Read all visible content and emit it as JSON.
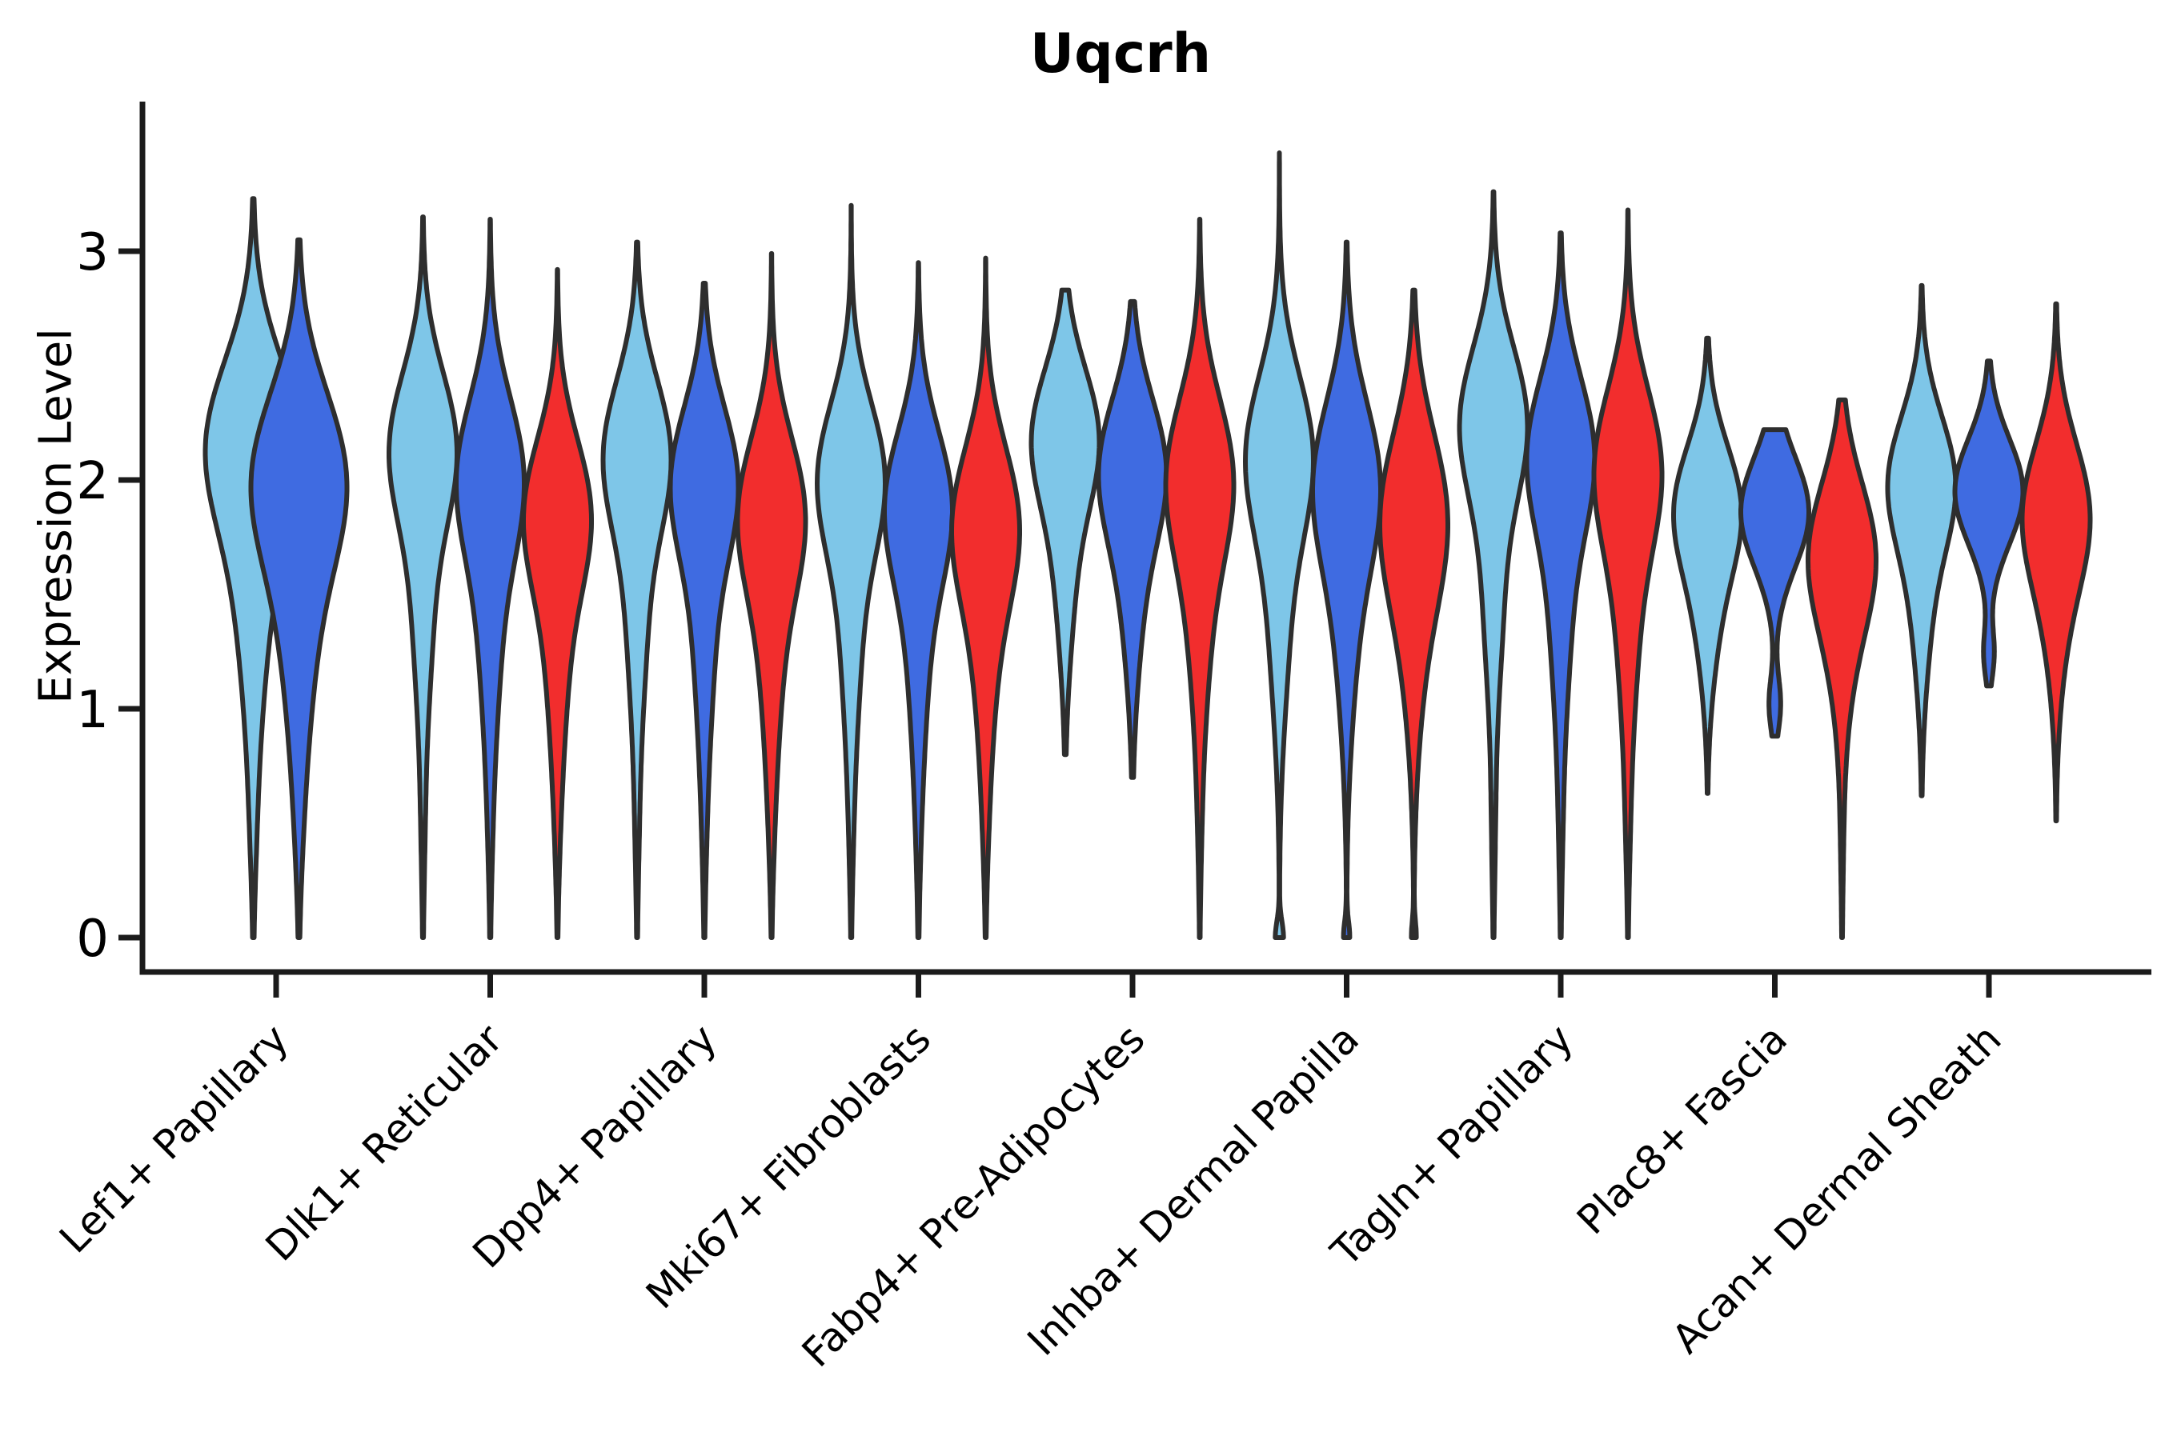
{
  "chart_data": {
    "type": "violin",
    "title": "Uqcrh",
    "ylabel": "Expression Level",
    "xlabel": "",
    "yticks": [
      0,
      1,
      2,
      3
    ],
    "ylim": [
      0,
      3.7
    ],
    "grid": false,
    "legend_position": "none",
    "palette": {
      "split_1": "#7EC6E8",
      "split_2": "#3F6BE1",
      "split_3": "#F22D2D",
      "outline": "#2E2E2E",
      "axis": "#1B1B1B"
    },
    "categories": [
      "Lef1+ Papillary",
      "Dlk1+ Reticular",
      "Dpp4+ Papillary",
      "Mki67+ Fibroblasts",
      "Fabp4+ Pre-Adipocytes",
      "Inhba+ Dermal Papilla",
      "Tagln+ Papillary",
      "Plac8+ Fascia",
      "Acan+ Dermal Sheath"
    ],
    "groups": [
      {
        "category": "Lef1+ Papillary",
        "violins": [
          {
            "split": 1,
            "color": "#7EC6E8",
            "max": 3.23,
            "min": 0,
            "peak": 2.17,
            "comps": [
              [
                1,
                2.17,
                0.37
              ],
              [
                0.33,
                1.45,
                0.48
              ],
              [
                0.05,
                0.5,
                0.32
              ]
            ]
          },
          {
            "split": 2,
            "color": "#3F6BE1",
            "max": 3.05,
            "min": 0,
            "peak": 2.02,
            "comps": [
              [
                1,
                2.02,
                0.38
              ],
              [
                0.33,
                1.3,
                0.46
              ],
              [
                0.05,
                0.5,
                0.32
              ]
            ]
          }
        ]
      },
      {
        "category": "Dlk1+ Reticular",
        "violins": [
          {
            "split": 1,
            "color": "#7EC6E8",
            "max": 3.15,
            "min": 0,
            "peak": 2.15,
            "comps": [
              [
                1,
                2.15,
                0.33
              ],
              [
                0.3,
                1.43,
                0.42
              ],
              [
                0.05,
                0.5,
                0.32
              ]
            ]
          },
          {
            "split": 2,
            "color": "#3F6BE1",
            "max": 3.14,
            "min": 0,
            "peak": 2.02,
            "comps": [
              [
                1,
                2.02,
                0.35
              ],
              [
                0.3,
                1.3,
                0.42
              ],
              [
                0.05,
                0.5,
                0.32
              ]
            ]
          },
          {
            "split": 3,
            "color": "#F22D2D",
            "max": 2.92,
            "min": 0,
            "peak": 1.86,
            "comps": [
              [
                1,
                1.86,
                0.33
              ],
              [
                0.3,
                1.2,
                0.4
              ],
              [
                0.05,
                0.5,
                0.3
              ]
            ]
          }
        ]
      },
      {
        "category": "Dpp4+ Papillary",
        "violins": [
          {
            "split": 1,
            "color": "#7EC6E8",
            "max": 3.04,
            "min": 0,
            "peak": 2.12,
            "comps": [
              [
                1,
                2.12,
                0.33
              ],
              [
                0.3,
                1.4,
                0.42
              ],
              [
                0.05,
                0.5,
                0.32
              ]
            ]
          },
          {
            "split": 2,
            "color": "#3F6BE1",
            "max": 2.86,
            "min": 0,
            "peak": 2.0,
            "comps": [
              [
                1,
                2.0,
                0.33
              ],
              [
                0.3,
                1.3,
                0.42
              ],
              [
                0.05,
                0.5,
                0.32
              ]
            ]
          },
          {
            "split": 3,
            "color": "#F22D2D",
            "max": 2.99,
            "min": 0,
            "peak": 1.86,
            "comps": [
              [
                1,
                1.86,
                0.34
              ],
              [
                0.3,
                1.2,
                0.41
              ],
              [
                0.05,
                0.5,
                0.3
              ]
            ]
          }
        ]
      },
      {
        "category": "Mki67+ Fibroblasts",
        "violins": [
          {
            "split": 1,
            "color": "#7EC6E8",
            "max": 3.2,
            "min": 0,
            "peak": 2.02,
            "comps": [
              [
                1,
                2.02,
                0.33
              ],
              [
                0.3,
                1.32,
                0.42
              ],
              [
                0.05,
                0.5,
                0.32
              ]
            ]
          },
          {
            "split": 2,
            "color": "#3F6BE1",
            "max": 2.95,
            "min": 0,
            "peak": 1.9,
            "comps": [
              [
                1,
                1.9,
                0.33
              ],
              [
                0.3,
                1.25,
                0.42
              ],
              [
                0.05,
                0.5,
                0.32
              ]
            ]
          },
          {
            "split": 3,
            "color": "#F22D2D",
            "max": 2.97,
            "min": 0,
            "peak": 1.82,
            "comps": [
              [
                1,
                1.82,
                0.34
              ],
              [
                0.3,
                1.2,
                0.41
              ],
              [
                0.05,
                0.5,
                0.3
              ]
            ]
          }
        ]
      },
      {
        "category": "Fabp4+ Pre-Adipocytes",
        "violins": [
          {
            "split": 1,
            "color": "#7EC6E8",
            "max": 2.83,
            "min": 0.8,
            "peak": 2.2,
            "comps": [
              [
                1,
                2.2,
                0.3
              ],
              [
                0.3,
                1.62,
                0.38
              ]
            ]
          },
          {
            "split": 2,
            "color": "#3F6BE1",
            "max": 2.78,
            "min": 0.7,
            "peak": 2.06,
            "comps": [
              [
                1,
                2.06,
                0.31
              ],
              [
                0.3,
                1.5,
                0.38
              ]
            ]
          },
          {
            "split": 3,
            "color": "#F22D2D",
            "max": 3.14,
            "min": 0,
            "peak": 2.02,
            "comps": [
              [
                1,
                2.02,
                0.35
              ],
              [
                0.3,
                1.35,
                0.42
              ],
              [
                0.04,
                0.5,
                0.3
              ]
            ]
          }
        ]
      },
      {
        "category": "Inhba+ Dermal Papilla",
        "violins": [
          {
            "split": 1,
            "color": "#7EC6E8",
            "max": 3.43,
            "min": 0,
            "peak": 2.12,
            "comps": [
              [
                1,
                2.12,
                0.35
              ],
              [
                0.3,
                1.4,
                0.44
              ],
              [
                0.13,
                0.0,
                0.07
              ]
            ]
          },
          {
            "split": 2,
            "color": "#3F6BE1",
            "max": 3.04,
            "min": 0,
            "peak": 2.0,
            "comps": [
              [
                1,
                2.0,
                0.36
              ],
              [
                0.3,
                1.35,
                0.44
              ],
              [
                0.1,
                0.0,
                0.07
              ]
            ]
          },
          {
            "split": 3,
            "color": "#F22D2D",
            "max": 2.83,
            "min": 0,
            "peak": 1.86,
            "comps": [
              [
                1,
                1.86,
                0.37
              ],
              [
                0.3,
                1.3,
                0.44
              ],
              [
                0.08,
                0.0,
                0.07
              ]
            ]
          }
        ]
      },
      {
        "category": "Tagln+ Papillary",
        "violins": [
          {
            "split": 1,
            "color": "#7EC6E8",
            "max": 3.26,
            "min": 0,
            "peak": 2.26,
            "comps": [
              [
                1,
                2.26,
                0.33
              ],
              [
                0.3,
                1.5,
                0.42
              ],
              [
                0.05,
                0.5,
                0.32
              ]
            ]
          },
          {
            "split": 2,
            "color": "#3F6BE1",
            "max": 3.08,
            "min": 0,
            "peak": 2.12,
            "comps": [
              [
                1,
                2.12,
                0.34
              ],
              [
                0.3,
                1.4,
                0.42
              ],
              [
                0.05,
                0.5,
                0.32
              ]
            ]
          },
          {
            "split": 3,
            "color": "#F22D2D",
            "max": 3.18,
            "min": 0,
            "peak": 2.06,
            "comps": [
              [
                1,
                2.06,
                0.35
              ],
              [
                0.3,
                1.35,
                0.42
              ],
              [
                0.05,
                0.5,
                0.3
              ]
            ]
          }
        ]
      },
      {
        "category": "Plac8+ Fascia",
        "violins": [
          {
            "split": 1,
            "color": "#7EC6E8",
            "max": 2.62,
            "min": 0.63,
            "peak": 1.88,
            "comps": [
              [
                1,
                1.88,
                0.28
              ],
              [
                0.28,
                1.38,
                0.3
              ]
            ]
          },
          {
            "split": 2,
            "color": "#3F6BE1",
            "max": 2.22,
            "min": 0.88,
            "peak": 1.86,
            "comps": [
              [
                1,
                1.86,
                0.24
              ],
              [
                0.17,
                1.02,
                0.12
              ]
            ]
          },
          {
            "split": 3,
            "color": "#F22D2D",
            "max": 2.35,
            "min": 0,
            "peak": 1.7,
            "comps": [
              [
                1,
                1.7,
                0.31
              ],
              [
                0.32,
                1.28,
                0.36
              ],
              [
                0.04,
                0.45,
                0.3
              ]
            ]
          }
        ]
      },
      {
        "category": "Acan+ Dermal Sheath",
        "violins": [
          {
            "split": 1,
            "color": "#7EC6E8",
            "max": 2.85,
            "min": 0.62,
            "peak": 2.0,
            "comps": [
              [
                1,
                2.0,
                0.29
              ],
              [
                0.27,
                1.45,
                0.34
              ]
            ]
          },
          {
            "split": 2,
            "color": "#3F6BE1",
            "max": 2.52,
            "min": 1.1,
            "peak": 1.95,
            "comps": [
              [
                1,
                1.95,
                0.23
              ],
              [
                0.15,
                1.24,
                0.11
              ]
            ]
          },
          {
            "split": 3,
            "color": "#F22D2D",
            "max": 2.77,
            "min": 0.51,
            "peak": 1.87,
            "comps": [
              [
                1,
                1.87,
                0.31
              ],
              [
                0.27,
                1.4,
                0.35
              ]
            ]
          }
        ]
      }
    ]
  }
}
